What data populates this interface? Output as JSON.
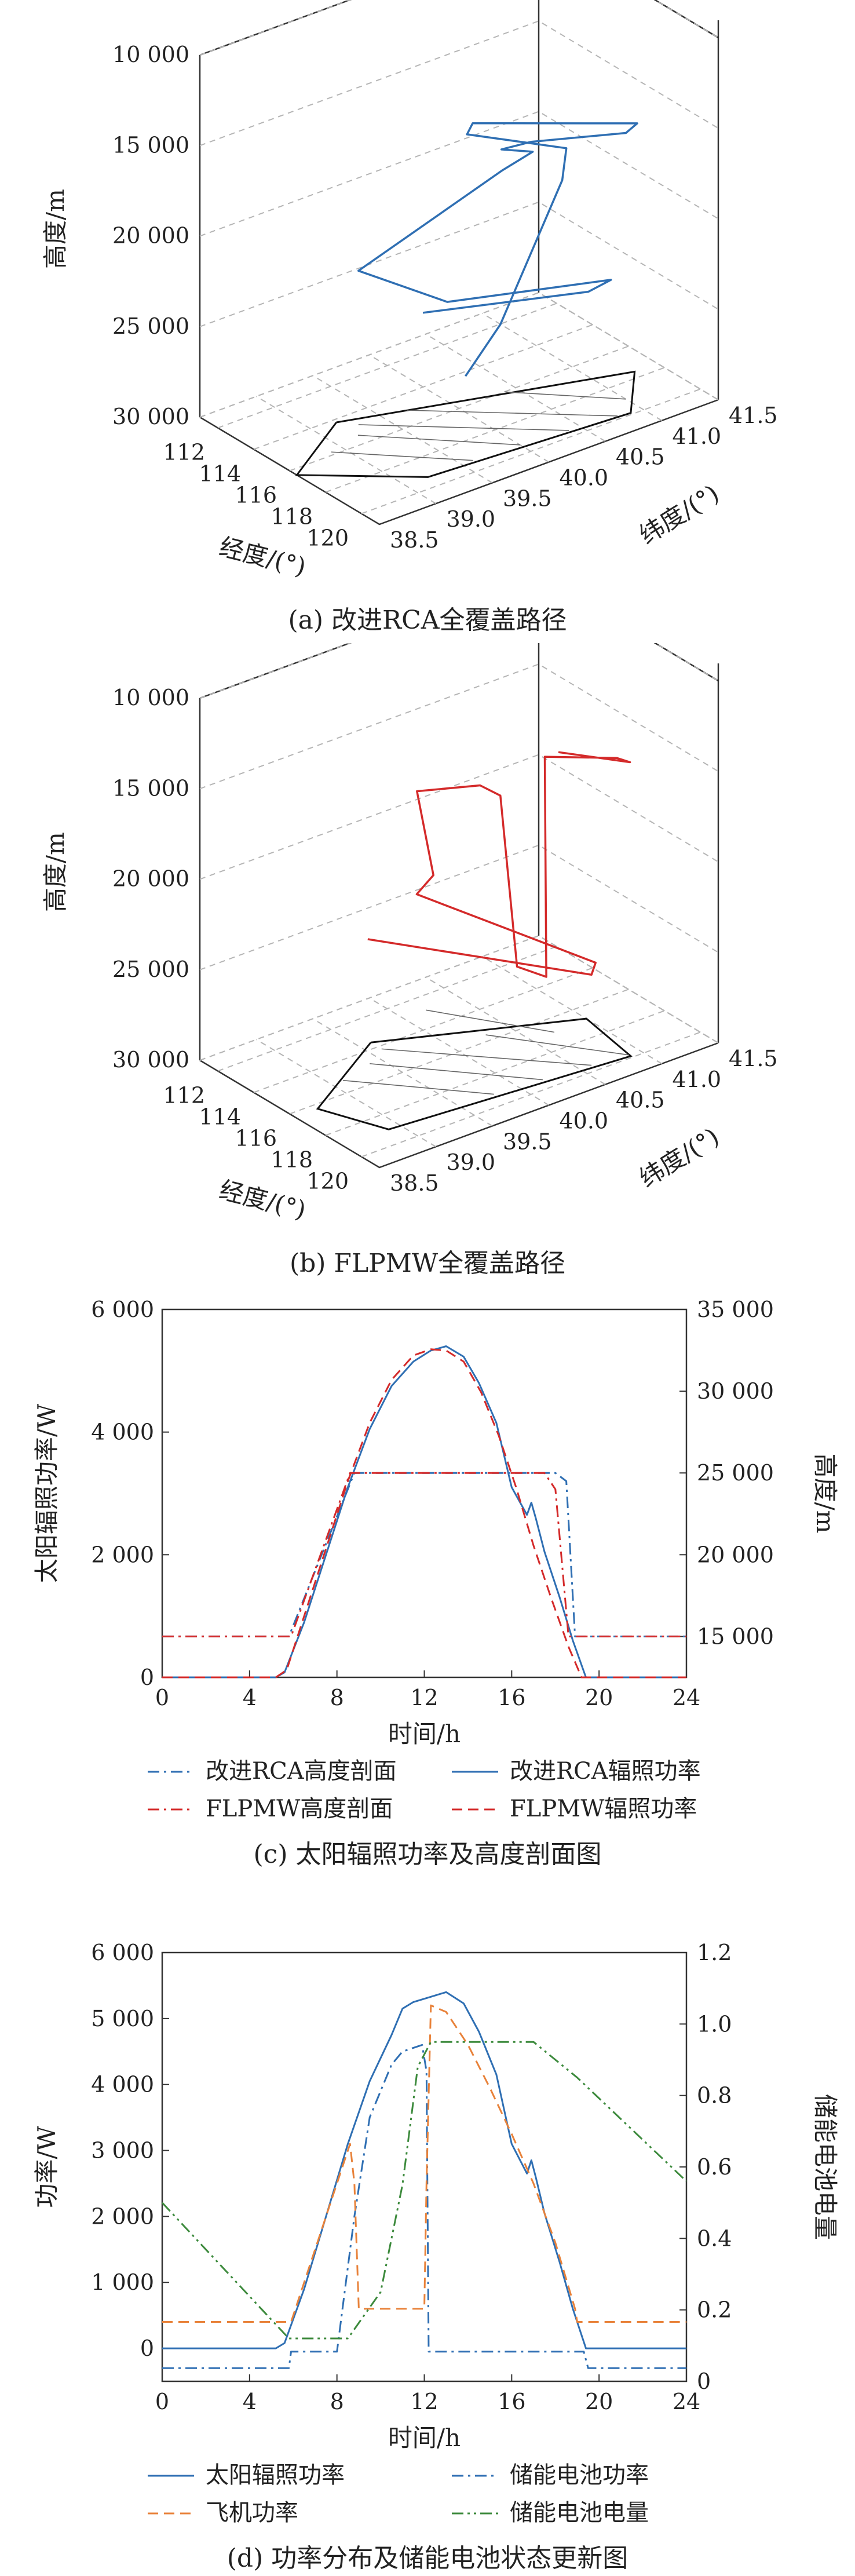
{
  "colors": {
    "rca": "#2f6fb3",
    "flpmw": "#d42a2a",
    "plane_power": "#e8823a",
    "battery_level": "#3c8a3c",
    "axis": "#333333",
    "grid": "#b5b5b5",
    "region": "#111111"
  },
  "chart_data": [
    {
      "id": "a",
      "type": "line3d",
      "caption": "(a) 改进RCA全覆盖路径",
      "zlabel": "高度/m",
      "xlabel": "经度/(°)",
      "ylabel": "纬度/(°)",
      "z_ticks": [
        "10 000",
        "15 000",
        "20 000",
        "25 000",
        "30 000"
      ],
      "x_ticks": [
        "112",
        "114",
        "116",
        "118",
        "120"
      ],
      "y_ticks": [
        "38.5",
        "39.0",
        "39.5",
        "40.0",
        "40.5",
        "41.0",
        "41.5"
      ],
      "xlim": [
        111,
        121
      ],
      "ylim": [
        38.5,
        41.5
      ],
      "zlim": [
        10000,
        30000
      ],
      "z_inverted": true,
      "series": [
        {
          "color_key": "rca",
          "points": [
            [
              116.5,
              39.6,
              23500
            ],
            [
              118.8,
              40.7,
              23500
            ],
            [
              118.8,
              40.9,
              23300
            ],
            [
              116.6,
              39.8,
              23300
            ],
            [
              114.8,
              39.3,
              21500
            ],
            [
              117.8,
              40.1,
              16000
            ],
            [
              117.9,
              40.35,
              15500
            ],
            [
              117.1,
              40.2,
              15500
            ],
            [
              117.5,
              40.4,
              15300
            ],
            [
              119.0,
              41.0,
              15300
            ],
            [
              119.0,
              41.1,
              15000
            ],
            [
              115.5,
              40.2,
              15000
            ],
            [
              115.5,
              40.15,
              15500
            ],
            [
              118.2,
              40.6,
              15700
            ],
            [
              118.6,
              40.5,
              17000
            ],
            [
              118.3,
              40.0,
              24000
            ],
            [
              119.5,
              39.5,
              25000
            ]
          ]
        }
      ],
      "region": [
        [
          114.2,
          39.2
        ],
        [
          117.6,
          41.3
        ],
        [
          119.9,
          40.9
        ],
        [
          119.3,
          39.2
        ],
        [
          116.4,
          38.5
        ],
        [
          114.2,
          39.2
        ]
      ],
      "hatch": [
        [
          [
            114.8,
            39.3
          ],
          [
            119.6,
            40.4
          ]
        ],
        [
          [
            115.4,
            39.2
          ],
          [
            119.4,
            40.0
          ]
        ],
        [
          [
            115.8,
            38.9
          ],
          [
            119.3,
            39.6
          ]
        ],
        [
          [
            115.0,
            39.7
          ],
          [
            119.8,
            40.8
          ]
        ],
        [
          [
            116.0,
            40.4
          ],
          [
            119.0,
            41.0
          ]
        ]
      ]
    },
    {
      "id": "b",
      "type": "line3d",
      "caption": "(b) FLPMW全覆盖路径",
      "zlabel": "高度/m",
      "xlabel": "经度/(°)",
      "ylabel": "纬度/(°)",
      "z_ticks": [
        "10 000",
        "15 000",
        "20 000",
        "25 000",
        "30 000"
      ],
      "x_ticks": [
        "112",
        "114",
        "116",
        "118",
        "120"
      ],
      "y_ticks": [
        "38.5",
        "39.0",
        "39.5",
        "40.0",
        "40.5",
        "41.0",
        "41.5"
      ],
      "xlim": [
        111,
        121
      ],
      "ylim": [
        38.5,
        41.5
      ],
      "zlim": [
        10000,
        30000
      ],
      "z_inverted": true,
      "series": [
        {
          "color_key": "flpmw",
          "points": [
            [
              112.8,
              39.7,
              25000
            ],
            [
              119.6,
              40.6,
              25000
            ],
            [
              119.2,
              40.7,
              24800
            ],
            [
              114.9,
              39.8,
              21500
            ],
            [
              115.2,
              39.9,
              20500
            ],
            [
              116.8,
              39.5,
              14000
            ],
            [
              117.8,
              39.9,
              14000
            ],
            [
              118.3,
              40.0,
              14500
            ],
            [
              118.6,
              40.1,
              24000
            ],
            [
              119.6,
              40.2,
              24200
            ],
            [
              117.0,
              40.6,
              14500
            ],
            [
              118.5,
              41.0,
              14600
            ],
            [
              118.6,
              41.1,
              15000
            ],
            [
              116.5,
              40.8,
              15000
            ]
          ]
        }
      ],
      "region": [
        [
          113.6,
          39.6
        ],
        [
          116.8,
          41.0
        ],
        [
          119.9,
          40.9
        ],
        [
          119.0,
          38.9
        ],
        [
          116.3,
          38.7
        ],
        [
          113.6,
          39.6
        ]
      ],
      "hatch": [
        [
          [
            114.2,
            39.6
          ],
          [
            119.6,
            40.6
          ]
        ],
        [
          [
            114.8,
            39.4
          ],
          [
            119.4,
            40.2
          ]
        ],
        [
          [
            115.2,
            39.1
          ],
          [
            119.2,
            39.8
          ]
        ],
        [
          [
            115.6,
            40.3
          ],
          [
            119.8,
            40.9
          ]
        ],
        [
          [
            112.9,
            40.2
          ],
          [
            116.9,
            40.7
          ]
        ]
      ]
    },
    {
      "id": "c",
      "type": "line",
      "caption": "(c) 太阳辐照功率及高度剖面图",
      "xlabel": "时间/h",
      "ylabel": "太阳辐照功率/W",
      "ylabel_right": "高度/m",
      "xlim": [
        0,
        24
      ],
      "ylim": [
        0,
        6000
      ],
      "ylim_right": [
        12500,
        35000
      ],
      "x_ticks": [
        "0",
        "4",
        "8",
        "12",
        "16",
        "20",
        "24"
      ],
      "y_ticks": [
        "0",
        "2 000",
        "4 000",
        "6 000"
      ],
      "y_ticks_right": [
        "15 000",
        "20 000",
        "25 000",
        "30 000",
        "35 000"
      ],
      "series": [
        {
          "name": "改进RCA高度剖面",
          "axis": "right",
          "color_key": "rca",
          "dash": "dashdot",
          "x": [
            0,
            5.8,
            8.8,
            18.0,
            18.5,
            18.9,
            24
          ],
          "y": [
            15000,
            15000,
            25000,
            25000,
            24500,
            15000,
            15000
          ]
        },
        {
          "name": "改进RCA辐照功率",
          "axis": "left",
          "color_key": "rca",
          "dash": "solid",
          "x": [
            0,
            5.2,
            5.6,
            6.5,
            7.5,
            8.5,
            9.5,
            10.5,
            11.5,
            12.3,
            13.0,
            13.8,
            14.5,
            15.3,
            16.0,
            16.7,
            16.9,
            17.1,
            17.5,
            18.2,
            18.8,
            19.4,
            24
          ],
          "y": [
            0,
            0,
            80,
            900,
            2000,
            3100,
            4050,
            4750,
            5150,
            5330,
            5400,
            5230,
            4800,
            4150,
            3100,
            2650,
            2850,
            2600,
            2050,
            1300,
            600,
            0,
            0
          ]
        },
        {
          "name": "FLPMW高度剖面",
          "axis": "right",
          "color_key": "flpmw",
          "dash": "dashdot",
          "x": [
            0,
            5.9,
            8.6,
            17.5,
            18.0,
            18.6,
            24
          ],
          "y": [
            15000,
            15000,
            25000,
            25000,
            24000,
            15000,
            15000
          ]
        },
        {
          "name": "FLPMW辐照功率",
          "axis": "left",
          "color_key": "flpmw",
          "dash": "dashed",
          "x": [
            0,
            5.2,
            5.7,
            6.5,
            7.5,
            8.5,
            9.5,
            10.5,
            11.5,
            12.3,
            13.0,
            13.8,
            14.6,
            15.4,
            16.2,
            17.0,
            17.8,
            18.6,
            19.2,
            24
          ],
          "y": [
            0,
            0,
            120,
            1000,
            2100,
            3200,
            4150,
            4850,
            5250,
            5350,
            5330,
            5150,
            4650,
            3950,
            3100,
            2150,
            1300,
            500,
            0,
            0
          ]
        }
      ]
    },
    {
      "id": "d",
      "type": "line",
      "caption": "(d) 功率分布及储能电池状态更新图",
      "xlabel": "时间/h",
      "ylabel": "功率/W",
      "ylabel_right": "储能电池电量",
      "xlim": [
        0,
        24
      ],
      "ylim": [
        -500,
        6000
      ],
      "ylim_right": [
        0,
        1.2
      ],
      "x_ticks": [
        "0",
        "4",
        "8",
        "12",
        "16",
        "20",
        "24"
      ],
      "y_ticks": [
        "0",
        "1 000",
        "2 000",
        "3 000",
        "4 000",
        "5 000",
        "6 000"
      ],
      "y_ticks_right": [
        "0",
        "0.2",
        "0.4",
        "0.6",
        "0.8",
        "1.0",
        "1.2"
      ],
      "series": [
        {
          "name": "太阳辐照功率",
          "axis": "left",
          "color_key": "rca",
          "dash": "solid",
          "x": [
            0,
            5.2,
            5.6,
            6.5,
            7.5,
            8.5,
            9.5,
            10.5,
            11.0,
            11.5,
            12.3,
            13.0,
            13.8,
            14.5,
            15.3,
            16.0,
            16.7,
            16.9,
            17.1,
            17.5,
            18.2,
            18.8,
            19.4,
            24
          ],
          "y": [
            0,
            0,
            80,
            900,
            2000,
            3100,
            4050,
            4750,
            5150,
            5250,
            5330,
            5400,
            5230,
            4800,
            4150,
            3100,
            2650,
            2850,
            2600,
            2050,
            1300,
            600,
            0,
            0
          ]
        },
        {
          "name": "储能电池功率",
          "axis": "left",
          "color_key": "rca",
          "dash": "dashdot",
          "x": [
            0,
            5.8,
            5.9,
            8.0,
            8.8,
            9.5,
            10.5,
            11.0,
            11.9,
            12.1,
            12.2,
            19.3,
            19.5,
            24
          ],
          "y": [
            -300,
            -300,
            -50,
            -50,
            2000,
            3500,
            4300,
            4500,
            4600,
            4200,
            -50,
            -50,
            -300,
            -300
          ]
        },
        {
          "name": "飞机功率",
          "axis": "left",
          "color_key": "plane_power",
          "dash": "dashed",
          "x": [
            0,
            5.9,
            8.6,
            8.8,
            9.0,
            12.0,
            12.1,
            12.3,
            13.0,
            14.0,
            15.0,
            16.0,
            17.0,
            18.0,
            18.9,
            19.0,
            24
          ],
          "y": [
            400,
            400,
            3100,
            2500,
            600,
            600,
            2500,
            5200,
            5100,
            4600,
            3950,
            3250,
            2500,
            1600,
            600,
            400,
            400
          ]
        },
        {
          "name": "储能电池电量",
          "axis": "right",
          "color_key": "battery_level",
          "dash": "dashdotdot",
          "x": [
            0,
            5.8,
            8.5,
            10.0,
            11.0,
            11.7,
            12.3,
            13.0,
            17.0,
            19.0,
            24
          ],
          "y": [
            0.5,
            0.12,
            0.12,
            0.25,
            0.55,
            0.88,
            0.95,
            0.95,
            0.95,
            0.85,
            0.56
          ]
        }
      ]
    }
  ]
}
